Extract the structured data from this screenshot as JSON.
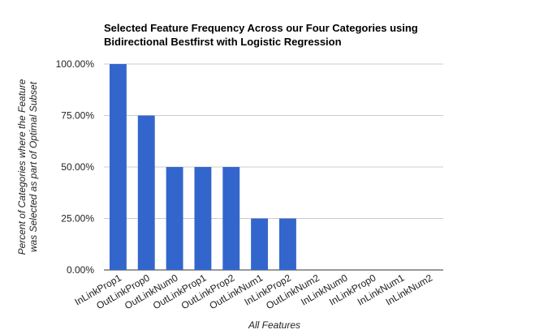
{
  "chart_data": {
    "type": "bar",
    "title_lines": [
      "Selected Feature Frequency Across our Four Categories using",
      "Bidirectional Bestfirst with Logistic Regression"
    ],
    "xlabel": "All Features",
    "ylabel_lines": [
      "Percent of Categories where the Feature",
      "was Selected as part of Optimal Subset"
    ],
    "categories": [
      "InLinkProp1",
      "OutLinkProp0",
      "OutLinkNum0",
      "OutLinkProp1",
      "OutLinkProp2",
      "OutLinkNum1",
      "InLinkProp2",
      "OutLinkNum2",
      "InLinkNum0",
      "InLinkProp0",
      "InLinkNum1",
      "InLinkNum2"
    ],
    "values": [
      100,
      75,
      50,
      50,
      50,
      25,
      25,
      0,
      0,
      0,
      0,
      0
    ],
    "ylim": [
      0,
      100
    ],
    "yticks": [
      0,
      25,
      50,
      75,
      100
    ],
    "ytick_labels": [
      "0.00%",
      "25.00%",
      "50.00%",
      "75.00%",
      "100.00%"
    ],
    "grid": true,
    "legend": false,
    "bar_color": "#3366cc"
  }
}
